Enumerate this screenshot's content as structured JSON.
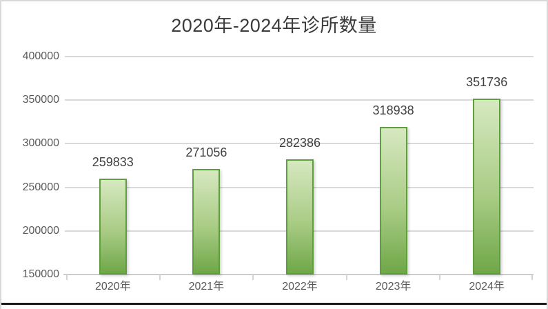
{
  "window": {
    "background": "#ffffff",
    "frame_border_color": "#d9d9d9",
    "bottom_edge_color": "#1b1b1b"
  },
  "colors": {
    "bar_fill_top": "#d6e8c0",
    "bar_fill_bottom": "#6fa748",
    "bar_border": "#5f9e3c",
    "gridline": "#d9d9d9",
    "axis_line": "#cccccc",
    "title_text": "#3b3b3b",
    "axis_text": "#595959",
    "value_label_text": "#404040"
  },
  "chart_data": {
    "type": "bar",
    "title": "2020年-2024年诊所数量",
    "categories": [
      "2020年",
      "2021年",
      "2022年",
      "2023年",
      "2024年"
    ],
    "values": [
      259833,
      271056,
      282386,
      318938,
      351736
    ],
    "data_labels": [
      "259833",
      "271056",
      "282386",
      "318938",
      "351736"
    ],
    "xlabel": "",
    "ylabel": "",
    "ylim": [
      150000,
      400000
    ],
    "yticks": [
      150000,
      200000,
      250000,
      300000,
      350000,
      400000
    ],
    "grid": true,
    "legend": "none",
    "bar_gradient": [
      "#d6e8c0",
      "#6fa748"
    ]
  }
}
